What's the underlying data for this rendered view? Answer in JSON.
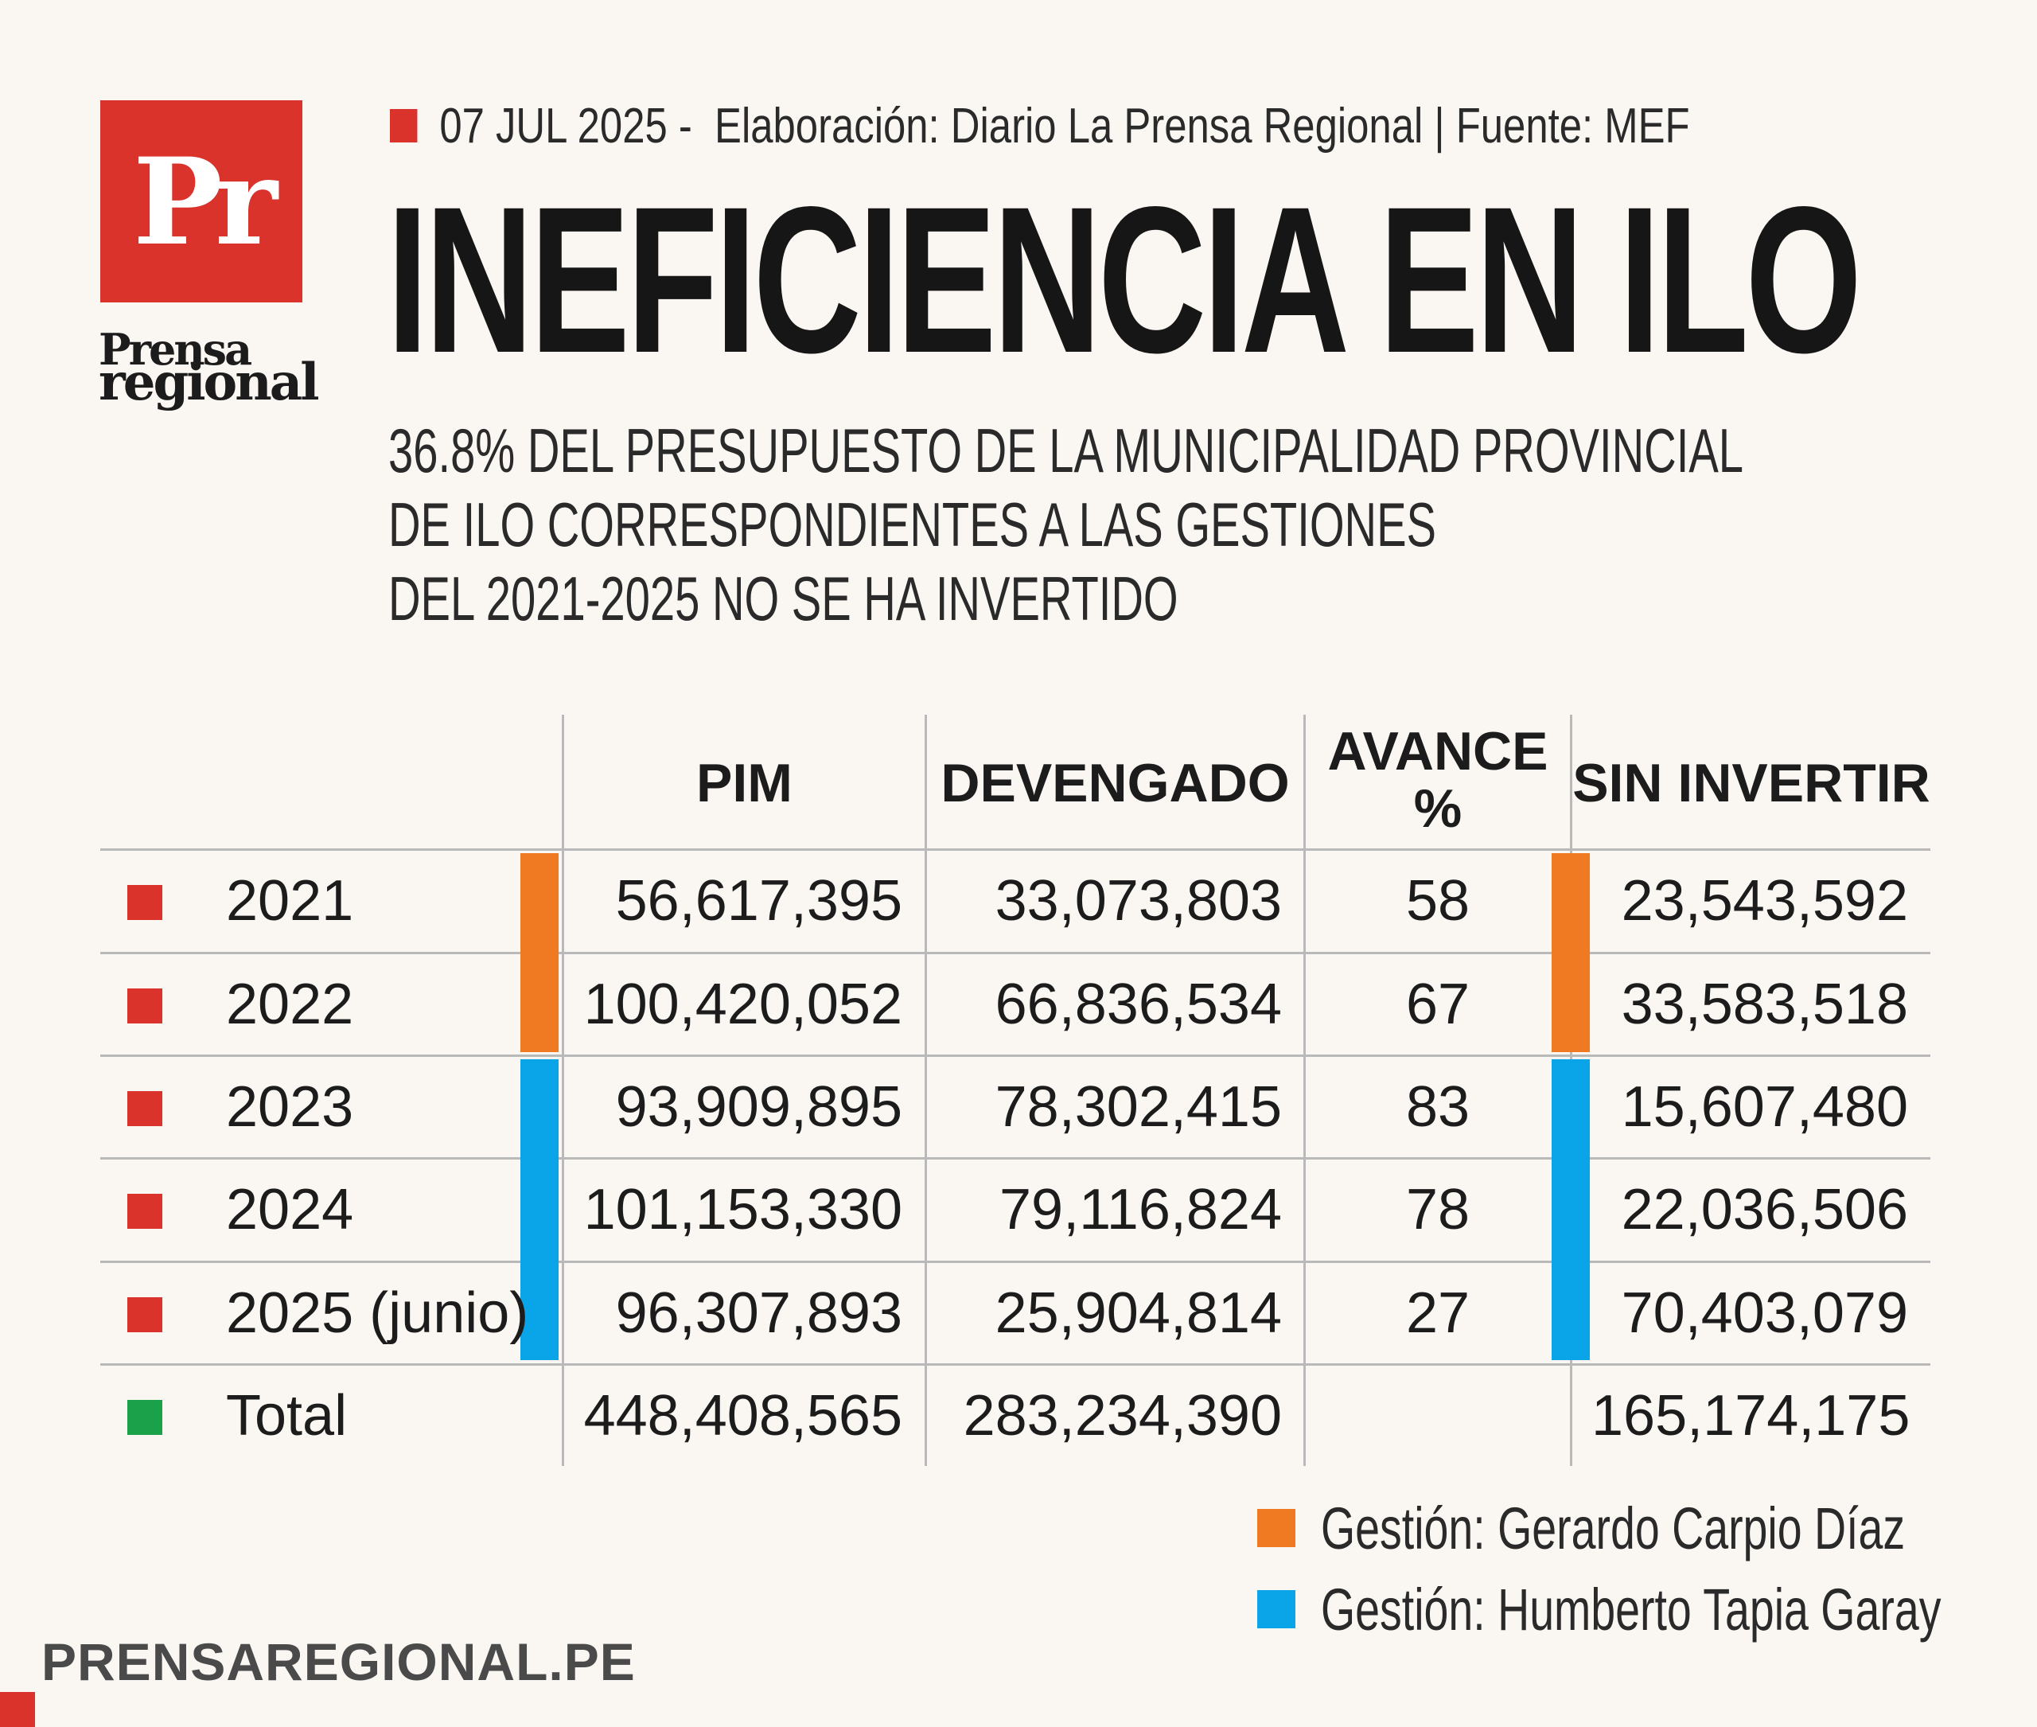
{
  "brand": {
    "logo_letters": "Pr",
    "name_line1": "Prensa",
    "name_line2": "regional",
    "website": "PRENSAREGIONAL.PE"
  },
  "meta": {
    "date": "07 JUL 2025 -",
    "source_text": "Elaboración: Diario La Prensa Regional | Fuente: MEF"
  },
  "title": "INEFICIENCIA EN ILO",
  "subtitle": [
    "36.8% DEL PRESUPUESTO DE LA MUNICIPALIDAD PROVINCIAL",
    "DE ILO CORRESPONDIENTES A  LAS GESTIONES",
    "DEL 2021-2025 NO SE HA INVERTIDO"
  ],
  "colors": {
    "red": "#d9332b",
    "green": "#1aa14a",
    "orange": "#f07a22",
    "blue": "#0aa4e8"
  },
  "table": {
    "headers": {
      "pim": "PIM",
      "devengado": "DEVENGADO",
      "avance_line1": "AVANCE",
      "avance_line2": "%",
      "sin_invertir": "SIN INVERTIR"
    },
    "rows": [
      {
        "year": "2021",
        "pim": "56,617,395",
        "devengado": "33,073,803",
        "avance": "58",
        "sin_invertir": "23,543,592",
        "gestion": "orange"
      },
      {
        "year": "2022",
        "pim": "100,420,052",
        "devengado": "66,836,534",
        "avance": "67",
        "sin_invertir": "33,583,518",
        "gestion": "orange"
      },
      {
        "year": "2023",
        "pim": "93,909,895",
        "devengado": "78,302,415",
        "avance": "83",
        "sin_invertir": "15,607,480",
        "gestion": "blue"
      },
      {
        "year": "2024",
        "pim": "101,153,330",
        "devengado": "79,116,824",
        "avance": "78",
        "sin_invertir": "22,036,506",
        "gestion": "blue"
      },
      {
        "year": "2025 (junio)",
        "pim": "96,307,893",
        "devengado": "25,904,814",
        "avance": "27",
        "sin_invertir": "70,403,079",
        "gestion": "blue"
      }
    ],
    "total": {
      "label": "Total",
      "pim": "448,408,565",
      "devengado": "283,234,390",
      "avance": "",
      "sin_invertir": "165,174,175"
    }
  },
  "legend": [
    {
      "label": "Gestión: Gerardo Carpio Díaz",
      "color": "#f07a22"
    },
    {
      "label": "Gestión: Humberto Tapia Garay",
      "color": "#0aa4e8"
    }
  ]
}
